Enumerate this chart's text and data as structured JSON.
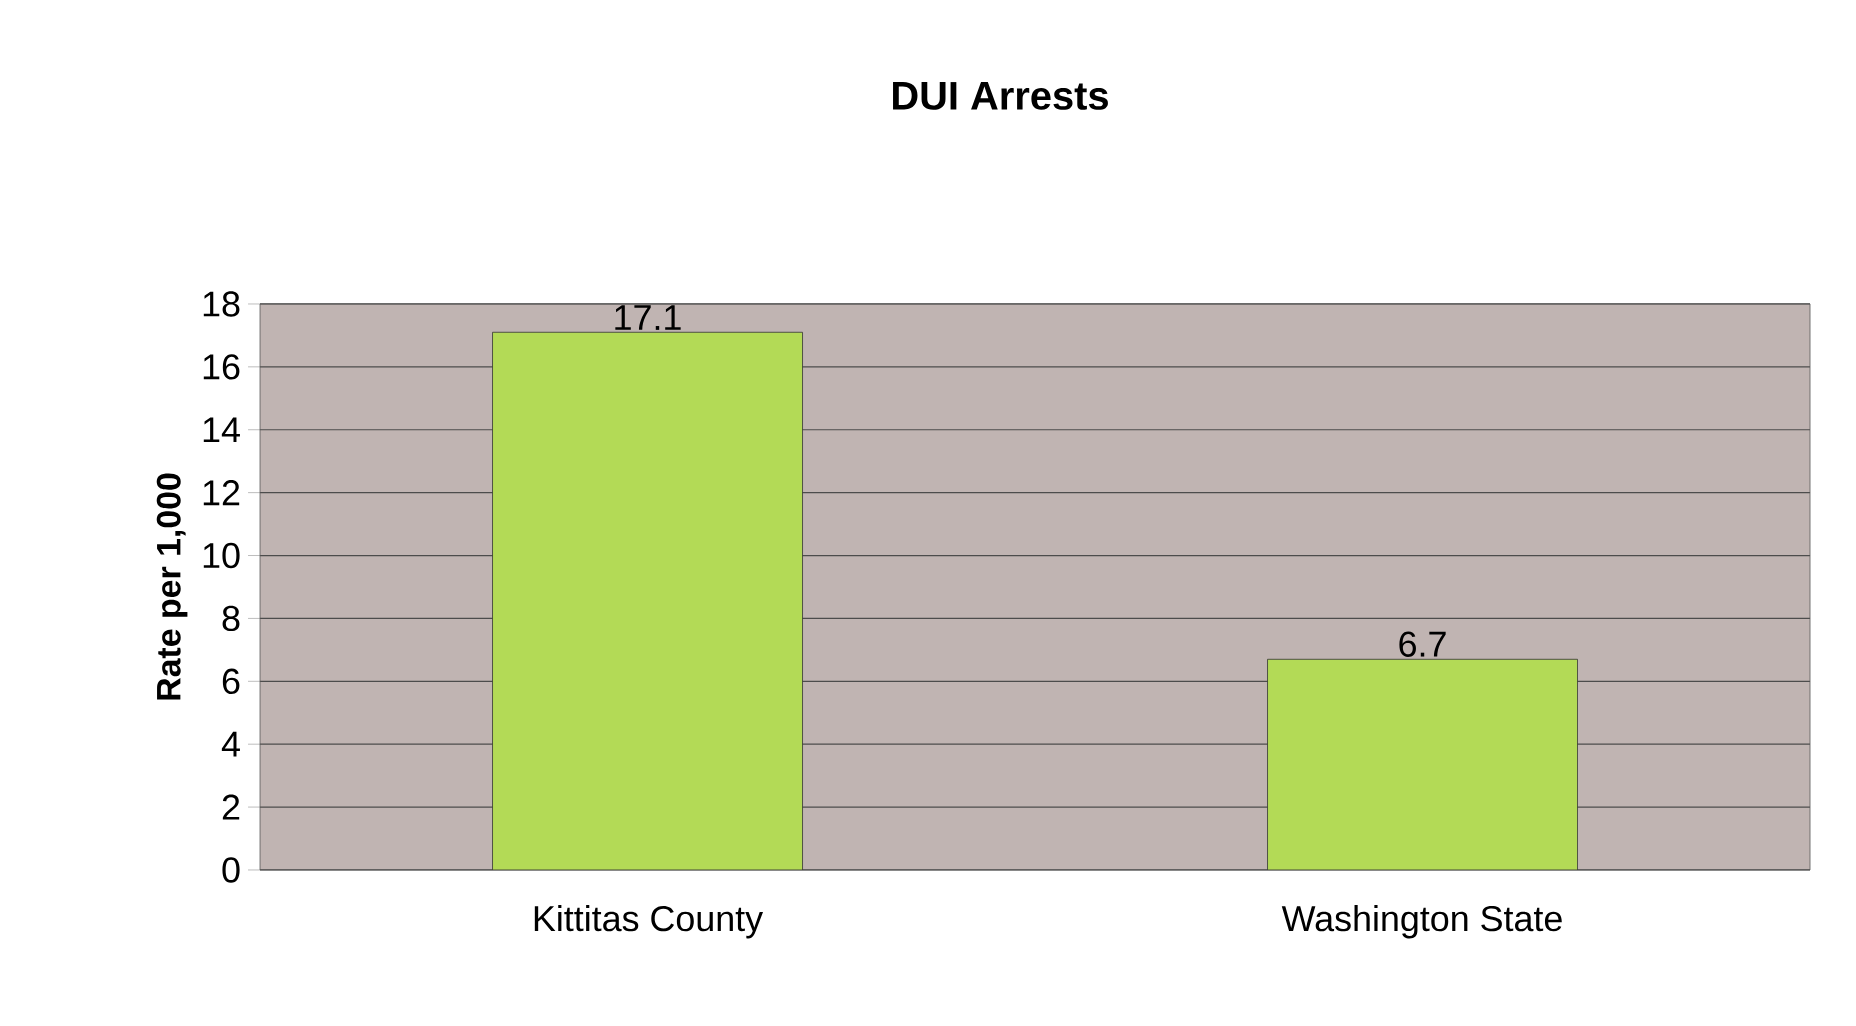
{
  "chart_data": {
    "type": "bar",
    "title": "DUI Arrests",
    "ylabel": "Rate per 1,000",
    "categories": [
      "Kittitas County",
      "Washington State"
    ],
    "values": [
      17.1,
      6.7
    ],
    "color": "#b3da56",
    "ylim": [
      0,
      18
    ],
    "yticks": [
      0,
      2,
      4,
      6,
      8,
      10,
      12,
      14,
      16,
      18
    ],
    "grid": "y",
    "data_labels": true
  }
}
